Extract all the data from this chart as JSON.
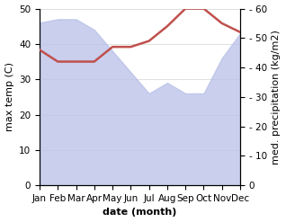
{
  "months": [
    "Jan",
    "Feb",
    "Mar",
    "Apr",
    "May",
    "Jun",
    "Jul",
    "Aug",
    "Sep",
    "Oct",
    "Nov",
    "Dec"
  ],
  "max_temp": [
    46,
    47,
    47,
    44,
    38,
    32,
    26,
    29,
    26,
    26,
    36,
    43
  ],
  "med_precip": [
    46,
    42,
    42,
    42,
    47,
    47,
    49,
    54,
    60,
    60,
    55,
    52
  ],
  "fill_color": "#b8c0e8",
  "precip_color": "#c0504d",
  "ylim_left": [
    0,
    50
  ],
  "ylim_right": [
    0,
    60
  ],
  "ylabel_left": "max temp (C)",
  "ylabel_right": "med. precipitation (kg/m2)",
  "xlabel": "date (month)",
  "axis_fontsize": 8,
  "tick_fontsize": 7.5,
  "right_yticks": [
    0,
    10,
    20,
    30,
    40,
    50,
    60
  ],
  "right_yticklabels": [
    "0",
    "- 10",
    "- 20",
    "- 30",
    "- 40",
    "- 50",
    "- 60"
  ],
  "left_yticks": [
    0,
    10,
    20,
    30,
    40,
    50
  ],
  "left_yticklabels": [
    "0",
    "10",
    "20",
    "30",
    "40",
    "50"
  ]
}
